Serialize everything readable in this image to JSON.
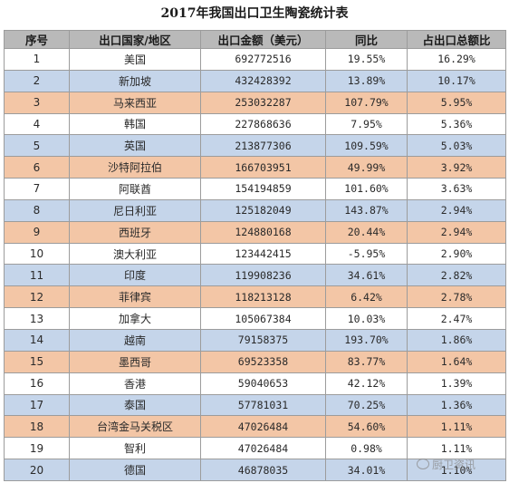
{
  "title": "2017年我国出口卫生陶瓷统计表",
  "columns": [
    "序号",
    "出口国家/地区",
    "出口金额（美元）",
    "同比",
    "占出口总额比"
  ],
  "rows": [
    {
      "no": "1",
      "country": "美国",
      "amount": "692772516",
      "yoy": "19.55%",
      "share": "16.29%",
      "color": "white"
    },
    {
      "no": "2",
      "country": "新加坡",
      "amount": "432428392",
      "yoy": "13.89%",
      "share": "10.17%",
      "color": "blue"
    },
    {
      "no": "3",
      "country": "马来西亚",
      "amount": "253032287",
      "yoy": "107.79%",
      "share": "5.95%",
      "color": "orange"
    },
    {
      "no": "4",
      "country": "韩国",
      "amount": "227868636",
      "yoy": "7.95%",
      "share": "5.36%",
      "color": "white"
    },
    {
      "no": "5",
      "country": "英国",
      "amount": "213877306",
      "yoy": "109.59%",
      "share": "5.03%",
      "color": "blue"
    },
    {
      "no": "6",
      "country": "沙特阿拉伯",
      "amount": "166703951",
      "yoy": "49.99%",
      "share": "3.92%",
      "color": "orange"
    },
    {
      "no": "7",
      "country": "阿联酋",
      "amount": "154194859",
      "yoy": "101.60%",
      "share": "3.63%",
      "color": "white"
    },
    {
      "no": "8",
      "country": "尼日利亚",
      "amount": "125182049",
      "yoy": "143.87%",
      "share": "2.94%",
      "color": "blue"
    },
    {
      "no": "9",
      "country": "西班牙",
      "amount": "124880168",
      "yoy": "20.44%",
      "share": "2.94%",
      "color": "orange"
    },
    {
      "no": "10",
      "country": "澳大利亚",
      "amount": "123442415",
      "yoy": "-5.95%",
      "share": "2.90%",
      "color": "white"
    },
    {
      "no": "11",
      "country": "印度",
      "amount": "119908236",
      "yoy": "34.61%",
      "share": "2.82%",
      "color": "blue"
    },
    {
      "no": "12",
      "country": "菲律宾",
      "amount": "118213128",
      "yoy": "6.42%",
      "share": "2.78%",
      "color": "orange"
    },
    {
      "no": "13",
      "country": "加拿大",
      "amount": "105067384",
      "yoy": "10.03%",
      "share": "2.47%",
      "color": "white"
    },
    {
      "no": "14",
      "country": "越南",
      "amount": "79158375",
      "yoy": "193.70%",
      "share": "1.86%",
      "color": "blue"
    },
    {
      "no": "15",
      "country": "墨西哥",
      "amount": "69523358",
      "yoy": "83.77%",
      "share": "1.64%",
      "color": "orange"
    },
    {
      "no": "16",
      "country": "香港",
      "amount": "59040653",
      "yoy": "42.12%",
      "share": "1.39%",
      "color": "white"
    },
    {
      "no": "17",
      "country": "泰国",
      "amount": "57781031",
      "yoy": "70.25%",
      "share": "1.36%",
      "color": "blue"
    },
    {
      "no": "18",
      "country": "台湾金马关税区",
      "amount": "47026484",
      "yoy": "54.60%",
      "share": "1.11%",
      "color": "orange"
    },
    {
      "no": "19",
      "country": "智利",
      "amount": "47026484",
      "yoy": "0.98%",
      "share": "1.11%",
      "color": "white"
    },
    {
      "no": "20",
      "country": "德国",
      "amount": "46878035",
      "yoy": "34.01%",
      "share": "1.10%",
      "color": "blue"
    }
  ],
  "watermark": "厨卫资讯",
  "watermark_icon": "wechat-icon"
}
